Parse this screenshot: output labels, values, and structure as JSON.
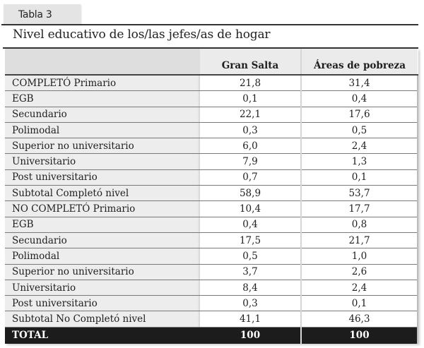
{
  "tab_label": "Tabla 3",
  "title": "Nivel educativo de los/las jefes/as de hogar",
  "table": {
    "headers": [
      "",
      "Gran Salta",
      "Áreas de pobreza"
    ],
    "rows": [
      {
        "label": "COMPLETÓ Primario",
        "gran_salta": "21,8",
        "areas_pobreza": "31,4"
      },
      {
        "label": " EGB",
        "gran_salta": "0,1",
        "areas_pobreza": "0,4"
      },
      {
        "label": "Secundario",
        "gran_salta": "22,1",
        "areas_pobreza": "17,6"
      },
      {
        "label": "Polimodal",
        "gran_salta": "0,3",
        "areas_pobreza": "0,5"
      },
      {
        "label": "Superior no universitario",
        "gran_salta": "6,0",
        "areas_pobreza": "2,4"
      },
      {
        "label": "Universitario",
        "gran_salta": "7,9",
        "areas_pobreza": "1,3"
      },
      {
        "label": "Post universitario",
        "gran_salta": "0,7",
        "areas_pobreza": "0,1"
      },
      {
        "label": "Subtotal Completó nivel",
        "gran_salta": "58,9",
        "areas_pobreza": "53,7"
      },
      {
        "label": "NO COMPLETÓ Primario",
        "gran_salta": "10,4",
        "areas_pobreza": "17,7"
      },
      {
        "label": "EGB",
        "gran_salta": "0,4",
        "areas_pobreza": "0,8"
      },
      {
        "label": "Secundario",
        "gran_salta": "17,5",
        "areas_pobreza": "21,7"
      },
      {
        "label": "Polimodal",
        "gran_salta": "0,5",
        "areas_pobreza": "1,0"
      },
      {
        "label": "Superior no universitario",
        "gran_salta": "3,7",
        "areas_pobreza": "2,6"
      },
      {
        "label": "Universitario",
        "gran_salta": "8,4",
        "areas_pobreza": "2,4"
      },
      {
        "label": "Post universitario",
        "gran_salta": "0,3",
        "areas_pobreza": "0,1"
      },
      {
        "label": "Subtotal No Completó nivel",
        "gran_salta": "41,1",
        "areas_pobreza": "46,3"
      }
    ],
    "total": {
      "label": "TOTAL",
      "gran_salta": "100",
      "areas_pobreza": "100"
    }
  }
}
